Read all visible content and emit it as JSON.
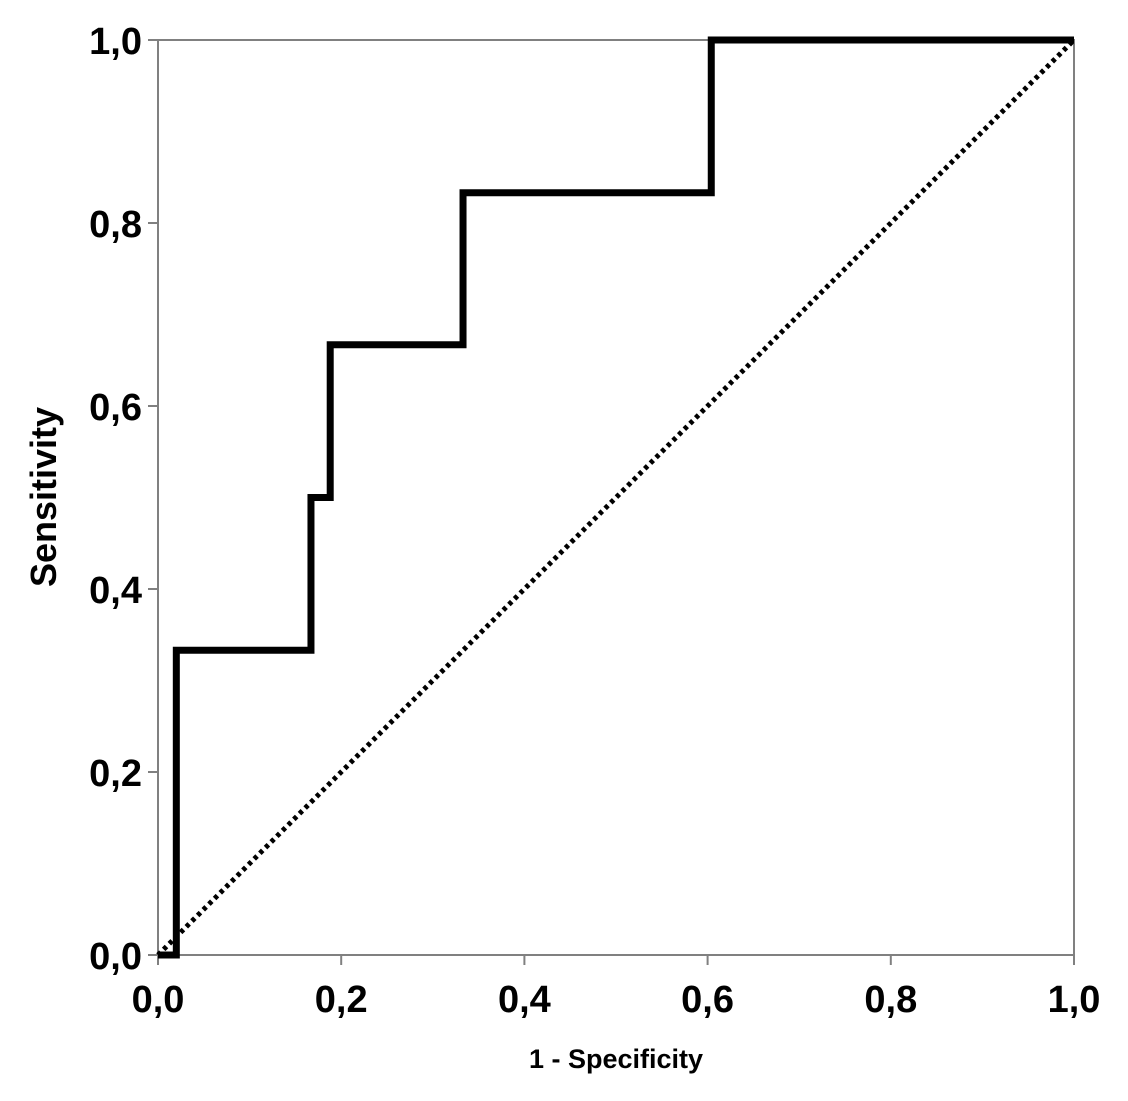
{
  "chart_data": {
    "type": "line",
    "xlabel": "1 - Specificity",
    "ylabel": "Sensitivity",
    "xlim": [
      0,
      1
    ],
    "ylim": [
      0,
      1
    ],
    "x_ticks": [
      "0,0",
      "0,2",
      "0,4",
      "0,6",
      "0,8",
      "1,0"
    ],
    "y_ticks": [
      "0,0",
      "0,2",
      "0,4",
      "0,6",
      "0,8",
      "1,0"
    ],
    "grid": false,
    "series": [
      {
        "style": "solid-step",
        "color": "#000000",
        "points": [
          [
            0.0,
            0.0
          ],
          [
            0.02,
            0.0
          ],
          [
            0.02,
            0.333
          ],
          [
            0.167,
            0.333
          ],
          [
            0.167,
            0.5
          ],
          [
            0.188,
            0.5
          ],
          [
            0.188,
            0.667
          ],
          [
            0.333,
            0.667
          ],
          [
            0.333,
            0.833
          ],
          [
            0.604,
            0.833
          ],
          [
            0.604,
            1.0
          ],
          [
            1.0,
            1.0
          ]
        ]
      },
      {
        "style": "dotted-reference",
        "color": "#000000",
        "points": [
          [
            0.0,
            0.0
          ],
          [
            1.0,
            1.0
          ]
        ]
      }
    ]
  }
}
